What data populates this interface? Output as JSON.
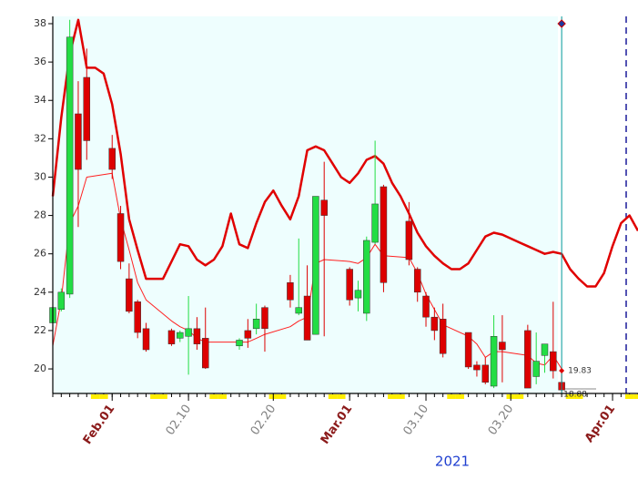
{
  "chart_data": {
    "type": "candlestick",
    "xlabel": "2021",
    "xlim": [
      "2021-01-25",
      "2021-04-04"
    ],
    "ylim": [
      18.72,
      38.38
    ],
    "yticks": [
      20,
      22,
      24,
      26,
      28,
      30,
      32,
      34,
      36,
      38
    ],
    "xticks": [
      {
        "value": "2021-02-01",
        "label": "Feb.01",
        "color": "#8b1a1a"
      },
      {
        "value": "2021-02-10",
        "label": "02.10",
        "color": "#808080"
      },
      {
        "value": "2021-02-20",
        "label": "02.20",
        "color": "#808080"
      },
      {
        "value": "2021-03-01",
        "label": "Mar.01",
        "color": "#8b1a1a"
      },
      {
        "value": "2021-03-10",
        "label": "03.10",
        "color": "#808080"
      },
      {
        "value": "2021-03-20",
        "label": "03.20",
        "color": "#808080"
      },
      {
        "value": "2021-04-01",
        "label": "Apr.01",
        "color": "#8b1a1a"
      }
    ],
    "up_color": "#22dd44",
    "down_color": "#dd0000",
    "x": [
      "2021-01-25",
      "2021-01-26",
      "2021-01-27",
      "2021-01-28",
      "2021-01-29",
      "2021-02-01",
      "2021-02-02",
      "2021-02-03",
      "2021-02-04",
      "2021-02-05",
      "2021-02-08",
      "2021-02-09",
      "2021-02-10",
      "2021-02-11",
      "2021-02-12",
      "2021-02-16",
      "2021-02-17",
      "2021-02-18",
      "2021-02-19",
      "2021-02-22",
      "2021-02-23",
      "2021-02-24",
      "2021-02-25",
      "2021-02-26",
      "2021-03-01",
      "2021-03-02",
      "2021-03-03",
      "2021-03-04",
      "2021-03-05",
      "2021-03-08",
      "2021-03-09",
      "2021-03-10",
      "2021-03-11",
      "2021-03-12",
      "2021-03-15",
      "2021-03-16",
      "2021-03-17",
      "2021-03-18",
      "2021-03-19",
      "2021-03-22",
      "2021-03-23",
      "2021-03-24",
      "2021-03-25",
      "2021-03-26"
    ],
    "open": [
      22.4,
      23.1,
      23.9,
      33.3,
      35.2,
      31.5,
      28.1,
      24.7,
      23.5,
      22.1,
      22.0,
      21.6,
      21.7,
      22.1,
      21.6,
      21.2,
      22.0,
      22.1,
      23.2,
      24.5,
      22.9,
      23.8,
      21.8,
      28.8,
      25.2,
      23.7,
      22.9,
      26.6,
      29.5,
      27.7,
      25.2,
      23.8,
      22.7,
      22.6,
      21.9,
      20.2,
      20.2,
      19.1,
      21.4,
      22.0,
      19.6,
      20.7,
      20.9,
      19.3
    ],
    "high": [
      23.4,
      24.2,
      38.2,
      35.0,
      36.7,
      32.2,
      28.5,
      25.5,
      23.6,
      22.4,
      22.1,
      22.0,
      23.8,
      22.7,
      23.2,
      21.6,
      22.6,
      23.4,
      23.3,
      24.9,
      26.8,
      25.4,
      29.0,
      30.8,
      25.3,
      24.6,
      26.9,
      31.9,
      29.6,
      28.7,
      25.3,
      24.0,
      23.2,
      23.4,
      21.9,
      20.4,
      20.6,
      22.8,
      22.8,
      22.3,
      21.9,
      21.3,
      23.5,
      19.9
    ],
    "low": [
      22.3,
      23.0,
      23.7,
      27.4,
      30.9,
      29.9,
      25.2,
      22.9,
      21.6,
      20.9,
      21.2,
      21.4,
      19.7,
      21.0,
      20.0,
      21.0,
      21.1,
      21.8,
      20.9,
      23.2,
      22.8,
      21.5,
      21.8,
      21.7,
      23.3,
      23.0,
      22.5,
      26.5,
      24.0,
      25.4,
      23.5,
      22.2,
      21.5,
      20.6,
      20.0,
      19.6,
      19.2,
      19.0,
      19.3,
      19.0,
      19.2,
      19.8,
      19.5,
      18.8
    ],
    "close": [
      23.2,
      24.0,
      37.3,
      30.4,
      31.9,
      30.4,
      25.6,
      23.0,
      21.9,
      21.0,
      21.3,
      21.9,
      22.1,
      21.3,
      20.05,
      21.5,
      21.6,
      22.6,
      22.1,
      23.6,
      23.2,
      21.5,
      29.0,
      28.0,
      23.6,
      24.1,
      26.7,
      28.6,
      24.5,
      25.7,
      24.0,
      22.7,
      22.0,
      20.8,
      20.1,
      19.95,
      19.3,
      21.7,
      21.0,
      19.0,
      20.4,
      21.3,
      19.9,
      18.9
    ],
    "lines": [
      {
        "color": "#e00000",
        "width": 2.5,
        "x": [
          "2021-01-25",
          "2021-01-26",
          "2021-01-27",
          "2021-01-28",
          "2021-01-29",
          "2021-01-30",
          "2021-01-31",
          "2021-02-01",
          "2021-02-02",
          "2021-02-03",
          "2021-02-04",
          "2021-02-05",
          "2021-02-06",
          "2021-02-07",
          "2021-02-08",
          "2021-02-09",
          "2021-02-10",
          "2021-02-11",
          "2021-02-12",
          "2021-02-13",
          "2021-02-14",
          "2021-02-15",
          "2021-02-16",
          "2021-02-17",
          "2021-02-18",
          "2021-02-19",
          "2021-02-20",
          "2021-02-21",
          "2021-02-22",
          "2021-02-23",
          "2021-02-24",
          "2021-02-25",
          "2021-02-26",
          "2021-02-27",
          "2021-02-28",
          "2021-03-01",
          "2021-03-02",
          "2021-03-03",
          "2021-03-04",
          "2021-03-05",
          "2021-03-06",
          "2021-03-07",
          "2021-03-08",
          "2021-03-09",
          "2021-03-10",
          "2021-03-11",
          "2021-03-12",
          "2021-03-13",
          "2021-03-14",
          "2021-03-15",
          "2021-03-16",
          "2021-03-17",
          "2021-03-18",
          "2021-03-19",
          "2021-03-20",
          "2021-03-21",
          "2021-03-22",
          "2021-03-23",
          "2021-03-24",
          "2021-03-25",
          "2021-03-26",
          "2021-03-27",
          "2021-03-28",
          "2021-03-29",
          "2021-03-30",
          "2021-03-31",
          "2021-04-01",
          "2021-04-02",
          "2021-04-03",
          "2021-04-04"
        ],
        "values": [
          29.0,
          33.1,
          36.4,
          38.2,
          35.7,
          35.7,
          35.4,
          33.8,
          31.2,
          27.8,
          26.2,
          24.7,
          24.7,
          24.7,
          25.6,
          26.5,
          26.4,
          25.7,
          25.4,
          25.7,
          26.4,
          28.1,
          26.5,
          26.3,
          27.6,
          28.7,
          29.3,
          28.5,
          27.8,
          29.0,
          31.4,
          31.6,
          31.4,
          30.7,
          30.0,
          29.7,
          30.2,
          30.9,
          31.1,
          30.7,
          29.7,
          29.0,
          28.1,
          27.1,
          26.4,
          25.9,
          25.5,
          25.2,
          25.2,
          25.5,
          26.2,
          26.9,
          27.1,
          27.0,
          26.8,
          26.6,
          26.4,
          26.2,
          26.0,
          26.1,
          26.0,
          25.2,
          24.7,
          24.3,
          24.3,
          25.0,
          26.4,
          27.6,
          28.0,
          27.2
        ]
      },
      {
        "color": "#ff2020",
        "width": 1,
        "x": [
          "2021-01-25",
          "2021-01-26",
          "2021-01-27",
          "2021-01-28",
          "2021-01-29",
          "2021-02-01",
          "2021-02-02",
          "2021-02-03",
          "2021-02-04",
          "2021-02-05",
          "2021-02-08",
          "2021-02-09",
          "2021-02-10",
          "2021-02-11",
          "2021-02-12",
          "2021-02-16",
          "2021-02-17",
          "2021-02-18",
          "2021-02-19",
          "2021-02-22",
          "2021-02-23",
          "2021-02-24",
          "2021-02-25",
          "2021-02-26",
          "2021-03-01",
          "2021-03-02",
          "2021-03-03",
          "2021-03-04",
          "2021-03-05",
          "2021-03-08",
          "2021-03-09",
          "2021-03-10",
          "2021-03-11",
          "2021-03-12",
          "2021-03-15",
          "2021-03-16",
          "2021-03-17",
          "2021-03-18",
          "2021-03-19",
          "2021-03-22",
          "2021-03-23",
          "2021-03-24",
          "2021-03-25",
          "2021-03-26"
        ],
        "values": [
          21.2,
          23.6,
          27.6,
          28.5,
          30.0,
          30.2,
          27.8,
          26.2,
          24.5,
          23.6,
          22.5,
          22.2,
          22.0,
          21.6,
          21.4,
          21.4,
          21.4,
          21.6,
          21.8,
          22.2,
          22.5,
          22.7,
          25.5,
          25.7,
          25.6,
          25.5,
          25.8,
          26.5,
          25.9,
          25.8,
          25.0,
          23.9,
          23.1,
          22.3,
          21.7,
          21.3,
          20.6,
          20.9,
          20.9,
          20.7,
          20.3,
          20.2,
          20.7,
          20.0
        ]
      }
    ],
    "annotations": [
      "19.83",
      "18.88"
    ]
  }
}
